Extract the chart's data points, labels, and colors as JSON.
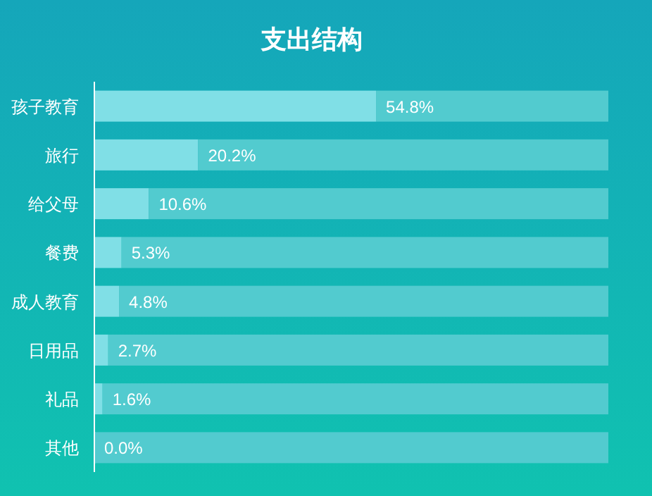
{
  "chart_data": {
    "type": "bar",
    "orientation": "horizontal",
    "title": "支出结构",
    "categories": [
      "孩子教育",
      "旅行",
      "给父母",
      "餐费",
      "成人教育",
      "日用品",
      "礼品",
      "其他"
    ],
    "xlim": [
      0,
      100
    ],
    "tick_labels": "y",
    "stacked": true,
    "series": [
      {
        "color": "#80dfe6",
        "values": [
          54.8,
          20.2,
          10.6,
          5.3,
          4.8,
          2.7,
          1.6,
          0.0
        ],
        "value_labels": [
          "54.8%",
          "20.2%",
          "10.6%",
          "5.3%",
          "4.8%",
          "2.7%",
          "1.6%",
          "0.0%"
        ]
      },
      {
        "color": "#52cbcf",
        "values": [
          45.2,
          79.8,
          89.4,
          94.7,
          95.2,
          97.3,
          98.4,
          100.0
        ]
      }
    ]
  }
}
